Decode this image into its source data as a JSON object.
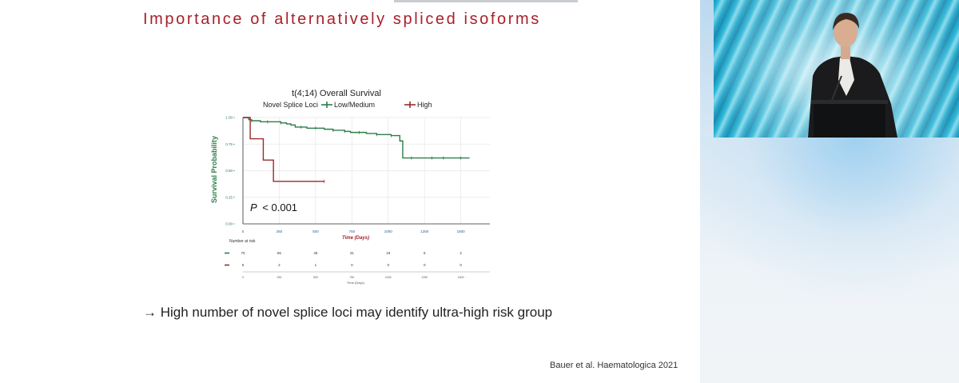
{
  "slide": {
    "title": "Importance of alternatively spliced isoforms",
    "bullet": "→ High number of novel splice loci may identify ultra-high risk group",
    "citation": "Bauer et al. Haematologica 2021",
    "title_color": "#a8202a"
  },
  "chart_data": {
    "type": "line",
    "title": "t(4;14) Overall Survival",
    "legend_title": "Novel Splice Loci",
    "xlabel": "Time (Days)",
    "ylabel": "Survival Probability",
    "xlim": [
      0,
      1700
    ],
    "ylim": [
      0,
      1.0
    ],
    "x_ticks": [
      "0",
      "250",
      "500",
      "750",
      "1000",
      "1250",
      "1500"
    ],
    "y_ticks": [
      "0.00",
      "0.25",
      "0.50",
      "0.75",
      "1.00"
    ],
    "p_value_label": "P",
    "p_value_text": "< 0.001",
    "series": [
      {
        "name": "Low/Medium",
        "color": "#2e7d4a",
        "x": [
          0,
          40,
          60,
          120,
          170,
          220,
          260,
          300,
          330,
          360,
          400,
          440,
          500,
          560,
          620,
          660,
          700,
          740,
          800,
          850,
          880,
          920,
          960,
          1020,
          1080,
          1100,
          1100,
          1160,
          1230,
          1300,
          1380,
          1500,
          1560
        ],
        "y": [
          1.0,
          0.98,
          0.97,
          0.96,
          0.96,
          0.96,
          0.95,
          0.94,
          0.93,
          0.91,
          0.91,
          0.9,
          0.9,
          0.89,
          0.88,
          0.88,
          0.87,
          0.86,
          0.86,
          0.85,
          0.85,
          0.84,
          0.84,
          0.83,
          0.78,
          0.78,
          0.62,
          0.62,
          0.62,
          0.62,
          0.62,
          0.62,
          0.62
        ],
        "censor_x": [
          60,
          170,
          260,
          400,
          500,
          620,
          700,
          800,
          920,
          1020,
          1160,
          1300,
          1380,
          1500
        ]
      },
      {
        "name": "High",
        "color": "#9a2b2b",
        "x": [
          0,
          50,
          50,
          140,
          140,
          210,
          210,
          560
        ],
        "y": [
          1.0,
          1.0,
          0.8,
          0.8,
          0.6,
          0.6,
          0.4,
          0.4
        ],
        "censor_x": [
          560
        ]
      }
    ],
    "risk_table": {
      "title": "Number at risk",
      "xlabel": "Time (Days)",
      "rows": [
        {
          "series": "Low/Medium",
          "color": "#2e7d4a",
          "values": [
            "70",
            "65",
            "48",
            "31",
            "19",
            "6",
            "2"
          ]
        },
        {
          "series": "High",
          "color": "#9a2b2b",
          "values": [
            "5",
            "2",
            "1",
            "0",
            "0",
            "0",
            "0"
          ]
        }
      ],
      "x_ticks": [
        "0",
        "250",
        "500",
        "750",
        "1000",
        "1250",
        "1500"
      ]
    }
  },
  "video": {
    "backdrop_color": "#1aa0c8"
  }
}
